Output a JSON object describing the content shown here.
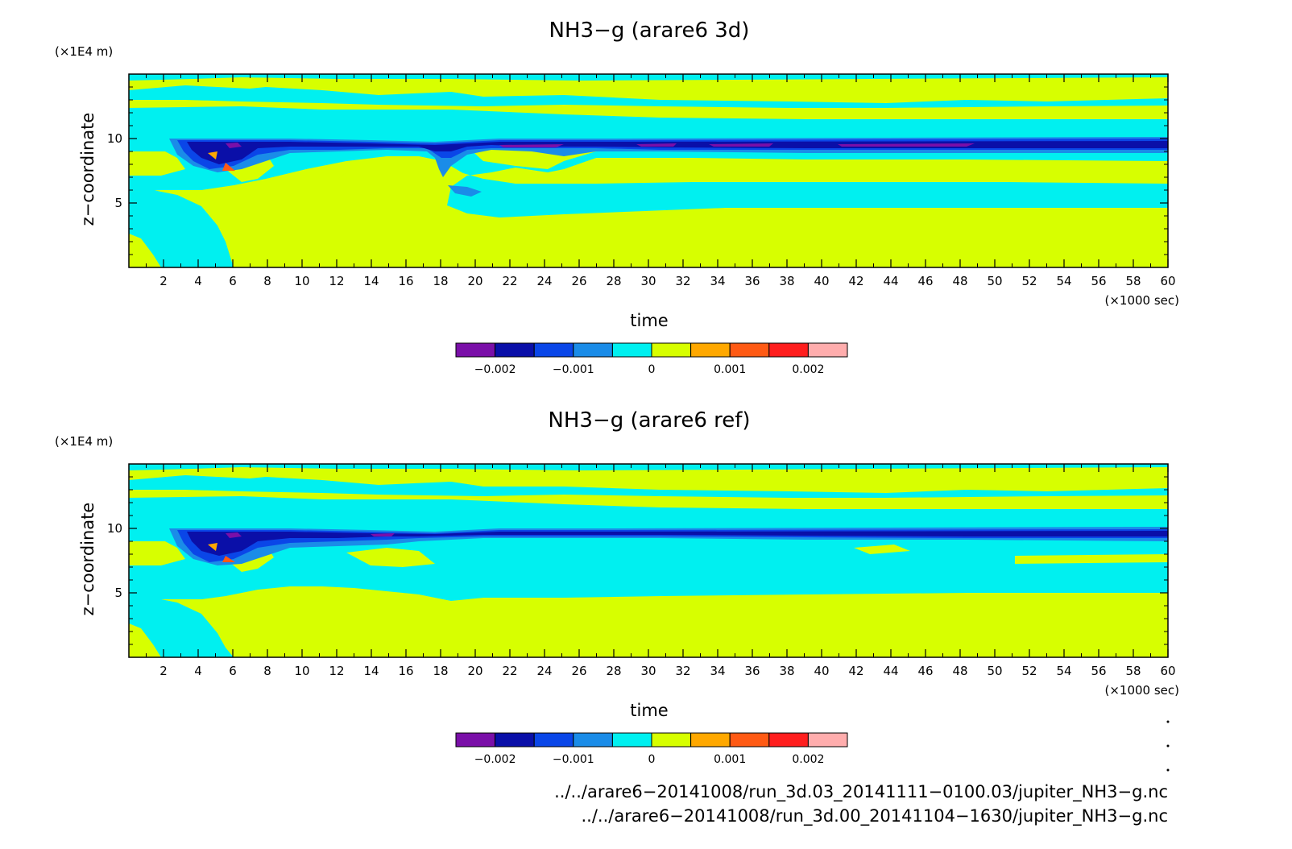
{
  "palette": {
    "bin_colors": [
      "#7a0fa8",
      "#0a0fa8",
      "#0a46e8",
      "#1a8ce8",
      "#00f0f0",
      "#d7ff00",
      "#ffa800",
      "#ff5a14",
      "#ff1e1e",
      "#ffadad"
    ],
    "contour_lines": "#000000",
    "frame": "#000000"
  },
  "chart_data": [
    {
      "type": "heatmap",
      "title": "NH3−g (arare6 3d)",
      "xlabel": "time",
      "xunit": "(×1000 sec)",
      "ylabel": "z−coordinate",
      "yunit": "(×1E4 m)",
      "xlim": [
        0,
        60
      ],
      "ylim": [
        0,
        1.5
      ],
      "xticks": [
        2,
        4,
        6,
        8,
        10,
        12,
        14,
        16,
        18,
        20,
        22,
        24,
        26,
        28,
        30,
        32,
        34,
        36,
        38,
        40,
        42,
        44,
        46,
        48,
        50,
        52,
        54,
        56,
        58,
        60
      ],
      "xtick_labels": [
        "2",
        "4",
        "6",
        "8",
        "10",
        "12",
        "14",
        "16",
        "18",
        "20",
        "22",
        "24",
        "26",
        "28",
        "30",
        "32",
        "34",
        "36",
        "38",
        "40",
        "42",
        "44",
        "46",
        "48",
        "50",
        "52",
        "54",
        "56",
        "58",
        "60"
      ],
      "yticks": [
        0.5,
        1.0
      ],
      "ytick_labels": [
        "5",
        "10"
      ],
      "colorbar": {
        "levels": [
          -0.0025,
          -0.002,
          -0.0015,
          -0.001,
          -0.0005,
          0,
          0.0005,
          0.001,
          0.0015,
          0.002,
          0.0025
        ],
        "tick_values": [
          -0.002,
          -0.001,
          0,
          0.001,
          0.002
        ],
        "tick_labels": [
          "−0.002",
          "−0.001",
          "0",
          "0.001",
          "0.002"
        ]
      }
    },
    {
      "type": "heatmap",
      "title": "NH3−g (arare6 ref)",
      "xlabel": "time",
      "xunit": "(×1000 sec)",
      "ylabel": "z−coordinate",
      "yunit": "(×1E4 m)",
      "xlim": [
        0,
        60
      ],
      "ylim": [
        0,
        1.5
      ],
      "xticks": [
        2,
        4,
        6,
        8,
        10,
        12,
        14,
        16,
        18,
        20,
        22,
        24,
        26,
        28,
        30,
        32,
        34,
        36,
        38,
        40,
        42,
        44,
        46,
        48,
        50,
        52,
        54,
        56,
        58,
        60
      ],
      "xtick_labels": [
        "2",
        "4",
        "6",
        "8",
        "10",
        "12",
        "14",
        "16",
        "18",
        "20",
        "22",
        "24",
        "26",
        "28",
        "30",
        "32",
        "34",
        "36",
        "38",
        "40",
        "42",
        "44",
        "46",
        "48",
        "50",
        "52",
        "54",
        "56",
        "58",
        "60"
      ],
      "yticks": [
        0.5,
        1.0
      ],
      "ytick_labels": [
        "5",
        "10"
      ],
      "colorbar": {
        "levels": [
          -0.0025,
          -0.002,
          -0.0015,
          -0.001,
          -0.0005,
          0,
          0.0005,
          0.001,
          0.0015,
          0.002,
          0.0025
        ],
        "tick_values": [
          -0.002,
          -0.001,
          0,
          0.001,
          0.002
        ],
        "tick_labels": [
          "−0.002",
          "−0.001",
          "0",
          "0.001",
          "0.002"
        ]
      }
    }
  ],
  "footer": {
    "file_1": "../../arare6−20141008/run_3d.03_20141111−0100.03/jupiter_NH3−g.nc",
    "file_2": "../../arare6−20141008/run_3d.00_20141104−1630/jupiter_NH3−g.nc"
  }
}
